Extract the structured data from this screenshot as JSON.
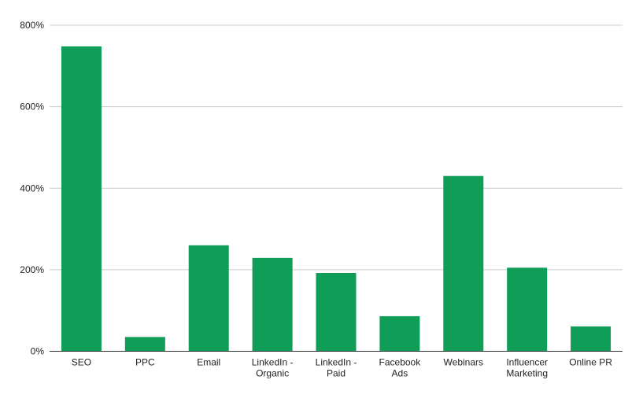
{
  "chart_data": {
    "type": "bar",
    "title": "",
    "xlabel": "",
    "ylabel": "",
    "categories": [
      [
        "SEO"
      ],
      [
        "PPC"
      ],
      [
        "Email"
      ],
      [
        "LinkedIn -",
        "Organic"
      ],
      [
        "LinkedIn -",
        "Paid"
      ],
      [
        "Facebook",
        "Ads"
      ],
      [
        "Webinars"
      ],
      [
        "Influencer",
        "Marketing"
      ],
      [
        "Online PR"
      ]
    ],
    "values": [
      748,
      35,
      260,
      229,
      192,
      86,
      430,
      205,
      61
    ],
    "value_unit": "%",
    "ylim": [
      0,
      800
    ],
    "yticks": [
      0,
      200,
      400,
      600,
      800
    ],
    "ytick_labels": [
      "0%",
      "200%",
      "400%",
      "600%",
      "800%"
    ],
    "grid": true,
    "legend": "none",
    "bar_color": "#0f9d58"
  }
}
